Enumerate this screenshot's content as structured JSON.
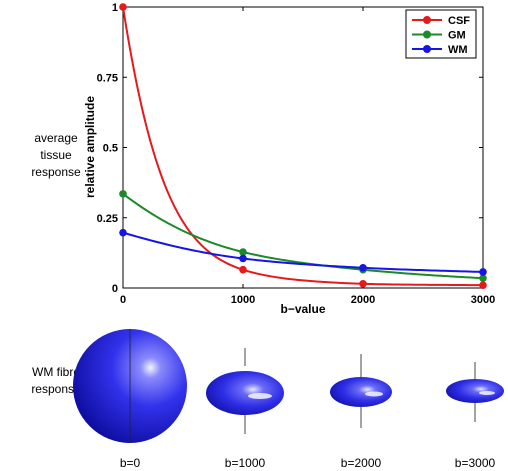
{
  "labels": {
    "average_tissue_response": [
      "average",
      "tissue",
      "response"
    ],
    "wm_fibre_response": [
      "WM fibre",
      "response"
    ]
  },
  "chart_data": {
    "type": "line",
    "xlabel": "b−value",
    "ylabel": "relative amplitude",
    "xlim": [
      0,
      3000
    ],
    "ylim": [
      0,
      1
    ],
    "xticks": [
      0,
      1000,
      2000,
      3000
    ],
    "xtick_labels": [
      "0",
      "1000",
      "2000",
      "3000"
    ],
    "yticks": [
      0,
      0.25,
      0.5,
      0.75,
      1
    ],
    "ytick_labels": [
      "0",
      "0.25",
      "0.5",
      "0.75",
      "1"
    ],
    "grid": false,
    "legend_position": "top-right",
    "x": [
      0,
      1000,
      2000,
      3000
    ],
    "series": [
      {
        "name": "CSF",
        "color": "#e41a1c",
        "values": [
          1.0,
          0.065,
          0.015,
          0.01
        ]
      },
      {
        "name": "GM",
        "color": "#1b8a2a",
        "values": [
          0.335,
          0.128,
          0.065,
          0.035
        ]
      },
      {
        "name": "WM",
        "color": "#1515e6",
        "values": [
          0.197,
          0.105,
          0.072,
          0.057
        ]
      }
    ]
  },
  "glyphs": {
    "color": "#2a2ae0",
    "items": [
      {
        "label": "b=0"
      },
      {
        "label": "b=1000"
      },
      {
        "label": "b=2000"
      },
      {
        "label": "b=3000"
      }
    ]
  }
}
